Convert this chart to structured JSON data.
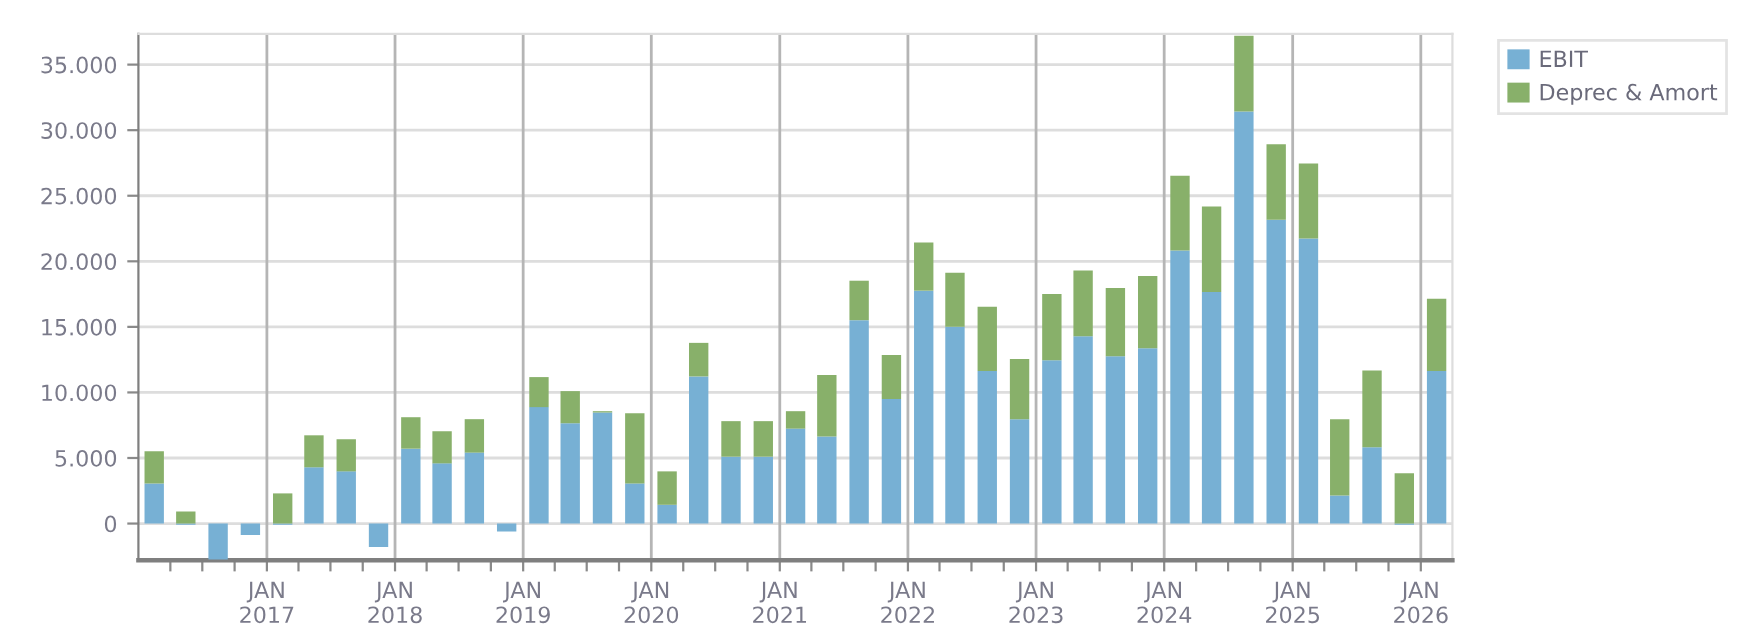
{
  "chart_data": {
    "type": "bar",
    "stacked": true,
    "x": [
      "2016-02-15",
      "2016-05-15",
      "2016-08-15",
      "2016-11-15",
      "2017-02-15",
      "2017-05-15",
      "2017-08-15",
      "2017-11-15",
      "2018-02-15",
      "2018-05-15",
      "2018-08-15",
      "2018-11-15",
      "2019-02-15",
      "2019-05-15",
      "2019-08-15",
      "2019-11-15",
      "2020-02-15",
      "2020-05-15",
      "2020-08-15",
      "2020-11-15",
      "2021-02-15",
      "2021-05-15",
      "2021-08-15",
      "2021-11-15",
      "2022-02-15",
      "2022-05-15",
      "2022-08-15",
      "2022-11-15",
      "2023-02-15",
      "2023-05-15",
      "2023-08-15",
      "2023-11-15",
      "2024-02-15",
      "2024-05-15",
      "2024-08-15",
      "2024-11-15",
      "2025-02-15",
      "2025-05-15",
      "2025-08-15",
      "2025-11-15",
      "2026-02-15"
    ],
    "series": [
      {
        "name": "EBIT",
        "color": "#77b0d4",
        "values": [
          3060,
          -100,
          -2750,
          -870,
          -100,
          4290,
          3980,
          -1790,
          5710,
          4590,
          5410,
          -610,
          8880,
          7650,
          8470,
          3060,
          1430,
          11220,
          5100,
          5100,
          7240,
          6630,
          15510,
          9490,
          17760,
          15000,
          11630,
          7960,
          12450,
          14290,
          12760,
          13370,
          20820,
          17650,
          31430,
          23160,
          21730,
          2140,
          5820,
          -100,
          11630
        ]
      },
      {
        "name": "Deprec & Amort",
        "color": "#88b06a",
        "values": [
          2450,
          920,
          0,
          0,
          2300,
          2440,
          2450,
          0,
          2400,
          2450,
          2550,
          0,
          2290,
          2450,
          100,
          5360,
          2550,
          2560,
          2710,
          2710,
          1330,
          4700,
          3010,
          3370,
          3670,
          4130,
          4900,
          4590,
          5050,
          5000,
          5200,
          5510,
          5710,
          6530,
          5770,
          5770,
          5720,
          5820,
          5860,
          3830,
          5510
        ]
      }
    ],
    "xlim": [
      "2016-01-01",
      "2026-04-01"
    ],
    "xticks": [
      {
        "value": "2016-04-01",
        "label": null
      },
      {
        "value": "2016-07-01",
        "label": null
      },
      {
        "value": "2016-10-01",
        "label": null
      },
      {
        "value": "2017-01-01",
        "label": "JAN\n2017"
      },
      {
        "value": "2017-04-01",
        "label": null
      },
      {
        "value": "2017-07-01",
        "label": null
      },
      {
        "value": "2017-10-01",
        "label": null
      },
      {
        "value": "2018-01-01",
        "label": "JAN\n2018"
      },
      {
        "value": "2018-04-01",
        "label": null
      },
      {
        "value": "2018-07-01",
        "label": null
      },
      {
        "value": "2018-10-01",
        "label": null
      },
      {
        "value": "2019-01-01",
        "label": "JAN\n2019"
      },
      {
        "value": "2019-04-01",
        "label": null
      },
      {
        "value": "2019-07-01",
        "label": null
      },
      {
        "value": "2019-10-01",
        "label": null
      },
      {
        "value": "2020-01-01",
        "label": "JAN\n2020"
      },
      {
        "value": "2020-04-01",
        "label": null
      },
      {
        "value": "2020-07-01",
        "label": null
      },
      {
        "value": "2020-10-01",
        "label": null
      },
      {
        "value": "2021-01-01",
        "label": "JAN\n2021"
      },
      {
        "value": "2021-04-01",
        "label": null
      },
      {
        "value": "2021-07-01",
        "label": null
      },
      {
        "value": "2021-10-01",
        "label": null
      },
      {
        "value": "2022-01-01",
        "label": "JAN\n2022"
      },
      {
        "value": "2022-04-01",
        "label": null
      },
      {
        "value": "2022-07-01",
        "label": null
      },
      {
        "value": "2022-10-01",
        "label": null
      },
      {
        "value": "2023-01-01",
        "label": "JAN\n2023"
      },
      {
        "value": "2023-04-01",
        "label": null
      },
      {
        "value": "2023-07-01",
        "label": null
      },
      {
        "value": "2023-10-01",
        "label": null
      },
      {
        "value": "2024-01-01",
        "label": "JAN\n2024"
      },
      {
        "value": "2024-04-01",
        "label": null
      },
      {
        "value": "2024-07-01",
        "label": null
      },
      {
        "value": "2024-10-01",
        "label": null
      },
      {
        "value": "2025-01-01",
        "label": "JAN\n2025"
      },
      {
        "value": "2025-04-01",
        "label": null
      },
      {
        "value": "2025-07-01",
        "label": null
      },
      {
        "value": "2025-10-01",
        "label": null
      },
      {
        "value": "2026-01-01",
        "label": "JAN\n2026"
      }
    ],
    "ylim": [
      -2800,
      37350
    ],
    "yticks": [
      0,
      {
        "value": 5000,
        "label": "5.000"
      },
      {
        "value": 10000,
        "label": "10.000"
      },
      {
        "value": 15000,
        "label": "15.000"
      },
      {
        "value": 20000,
        "label": "20.000"
      },
      {
        "value": 25000,
        "label": "25.000"
      },
      {
        "value": 30000,
        "label": "30.000"
      },
      {
        "value": 35000,
        "label": "35.000"
      }
    ],
    "grid": true,
    "legend": "top right"
  }
}
